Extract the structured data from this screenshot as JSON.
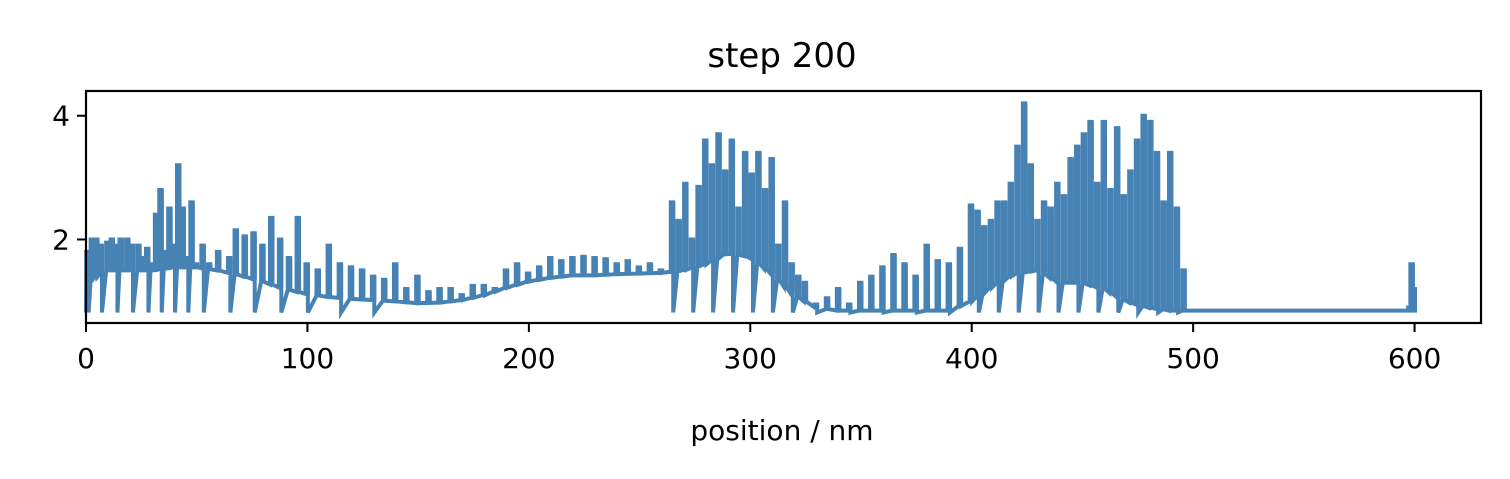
{
  "chart_data": {
    "type": "line",
    "title": "step 200",
    "xlabel": "position / nm",
    "ylabel": "",
    "xlim": [
      0,
      630
    ],
    "ylim": [
      0.65,
      4.4
    ],
    "xticks": [
      0,
      100,
      200,
      300,
      400,
      500,
      600
    ],
    "yticks": [
      2,
      4
    ],
    "grid": false,
    "legend": "none",
    "series": [
      {
        "color": "#4682b4",
        "baseline_x": [
          0,
          10,
          20,
          30,
          40,
          50,
          60,
          70,
          80,
          90,
          100,
          110,
          120,
          130,
          140,
          150,
          160,
          170,
          180,
          190,
          200,
          210,
          220,
          230,
          240,
          250,
          260,
          270,
          280,
          290,
          300,
          310,
          320,
          330,
          340,
          350,
          360,
          370,
          380,
          390,
          400,
          410,
          420,
          430,
          440,
          450,
          460,
          470,
          480,
          490,
          495,
          500,
          597,
          600
        ],
        "baseline_y": [
          1.3,
          1.5,
          1.5,
          1.5,
          1.55,
          1.55,
          1.5,
          1.42,
          1.32,
          1.2,
          1.12,
          1.07,
          1.04,
          1.02,
          1.0,
          0.97,
          0.98,
          1.02,
          1.1,
          1.22,
          1.32,
          1.38,
          1.42,
          1.42,
          1.44,
          1.45,
          1.46,
          1.5,
          1.6,
          1.78,
          1.72,
          1.45,
          1.1,
          0.9,
          0.85,
          0.85,
          0.85,
          0.85,
          0.85,
          0.85,
          1.0,
          1.25,
          1.45,
          1.5,
          1.3,
          1.3,
          1.2,
          1.0,
          0.9,
          0.85,
          0.85,
          0.85,
          0.85,
          0.85
        ],
        "peak_x": [
          1,
          3,
          5,
          7,
          10,
          12,
          14,
          16,
          19,
          21,
          24,
          26,
          28,
          30,
          32,
          34,
          36,
          38,
          40,
          42,
          44,
          46,
          48,
          50,
          53,
          56,
          60,
          65,
          68,
          72,
          76,
          80,
          84,
          88,
          92,
          96,
          100,
          105,
          110,
          115,
          120,
          125,
          130,
          135,
          140,
          145,
          150,
          155,
          160,
          165,
          170,
          175,
          180,
          185,
          190,
          195,
          200,
          205,
          210,
          215,
          220,
          225,
          230,
          235,
          240,
          245,
          250,
          255,
          260,
          265,
          268,
          271,
          274,
          277,
          280,
          283,
          286,
          289,
          292,
          295,
          298,
          301,
          304,
          307,
          310,
          313,
          316,
          319,
          322,
          325,
          330,
          335,
          340,
          345,
          350,
          355,
          360,
          365,
          370,
          375,
          380,
          385,
          390,
          395,
          400,
          403,
          406,
          409,
          412,
          415,
          418,
          421,
          424,
          427,
          430,
          433,
          436,
          439,
          442,
          445,
          448,
          451,
          454,
          457,
          460,
          463,
          466,
          469,
          472,
          475,
          478,
          481,
          484,
          487,
          490,
          493,
          496,
          598,
          599,
          600
        ],
        "peak_y": [
          1.8,
          2.0,
          2.0,
          1.9,
          1.95,
          2.0,
          1.9,
          2.0,
          2.0,
          1.9,
          1.9,
          1.7,
          1.85,
          1.6,
          2.4,
          2.8,
          1.8,
          2.5,
          1.9,
          3.2,
          2.5,
          1.7,
          2.6,
          1.6,
          1.9,
          1.6,
          1.8,
          1.7,
          2.15,
          2.05,
          2.1,
          1.9,
          2.35,
          2.0,
          1.7,
          2.35,
          1.6,
          1.5,
          1.9,
          1.6,
          1.55,
          1.5,
          1.4,
          1.35,
          1.6,
          1.2,
          1.4,
          1.15,
          1.2,
          1.2,
          1.1,
          1.25,
          1.25,
          1.2,
          1.5,
          1.6,
          1.45,
          1.55,
          1.7,
          1.65,
          1.7,
          1.72,
          1.7,
          1.68,
          1.6,
          1.65,
          1.55,
          1.6,
          1.5,
          2.6,
          2.3,
          2.9,
          2.0,
          2.85,
          3.6,
          3.2,
          3.7,
          3.1,
          3.6,
          2.5,
          3.4,
          3.05,
          3.4,
          2.8,
          3.3,
          1.9,
          2.6,
          1.6,
          1.4,
          1.3,
          0.95,
          1.05,
          1.2,
          0.95,
          1.3,
          1.4,
          1.55,
          1.75,
          1.6,
          1.4,
          1.9,
          1.65,
          1.6,
          1.85,
          2.55,
          2.45,
          2.2,
          2.3,
          2.6,
          2.6,
          2.9,
          3.5,
          4.2,
          3.2,
          2.3,
          2.6,
          2.5,
          2.9,
          2.7,
          3.3,
          3.5,
          3.7,
          3.9,
          2.9,
          3.9,
          2.8,
          3.8,
          2.7,
          3.1,
          3.6,
          4.0,
          3.9,
          3.4,
          2.6,
          3.4,
          2.5,
          1.5,
          0.9,
          1.6,
          1.2
        ]
      }
    ]
  }
}
